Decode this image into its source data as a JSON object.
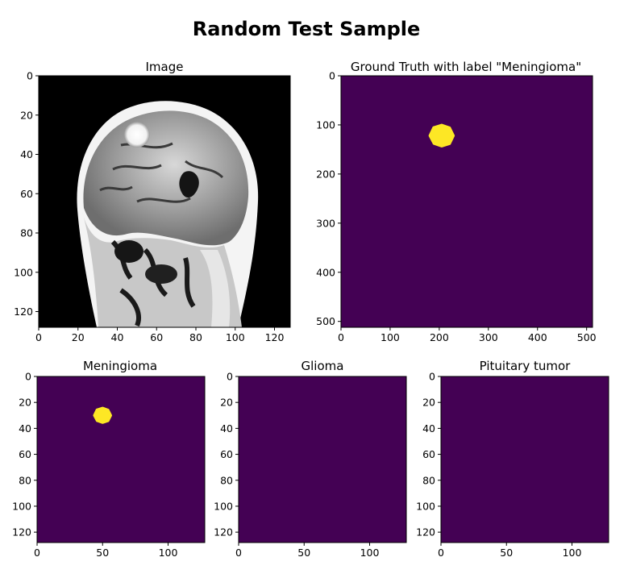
{
  "figure": {
    "title": "Random Test Sample"
  },
  "colors": {
    "mask_background": "#440154",
    "mask_foreground": "#fde725"
  },
  "chart_data": [
    {
      "type": "heatmap",
      "title": "Image",
      "content": "grayscale MRI scan",
      "xlim": [
        0,
        128
      ],
      "ylim": [
        128,
        0
      ],
      "xticks": [
        0,
        20,
        40,
        60,
        80,
        100,
        120
      ],
      "yticks": [
        0,
        20,
        40,
        60,
        80,
        100,
        120
      ],
      "tumor": {
        "cx": 50,
        "cy": 30,
        "r": 5
      }
    },
    {
      "type": "heatmap",
      "title": "Ground Truth with label \"Meningioma\"",
      "xlim": [
        0,
        512
      ],
      "ylim": [
        512,
        0
      ],
      "xticks": [
        0,
        100,
        200,
        300,
        400,
        500
      ],
      "yticks": [
        0,
        100,
        200,
        300,
        400,
        500
      ],
      "blob": {
        "cx": 205,
        "cy": 122,
        "r": 23
      }
    },
    {
      "type": "heatmap",
      "title": "Meningioma",
      "xlim": [
        0,
        128
      ],
      "ylim": [
        128,
        0
      ],
      "xticks": [
        0,
        50,
        100
      ],
      "yticks": [
        0,
        20,
        40,
        60,
        80,
        100,
        120
      ],
      "blob": {
        "cx": 50,
        "cy": 30,
        "r": 6
      }
    },
    {
      "type": "heatmap",
      "title": "Glioma",
      "xlim": [
        0,
        128
      ],
      "ylim": [
        128,
        0
      ],
      "xticks": [
        0,
        50,
        100
      ],
      "yticks": [
        0,
        20,
        40,
        60,
        80,
        100,
        120
      ]
    },
    {
      "type": "heatmap",
      "title": "Pituitary tumor",
      "xlim": [
        0,
        128
      ],
      "ylim": [
        128,
        0
      ],
      "xticks": [
        0,
        50,
        100
      ],
      "yticks": [
        0,
        20,
        40,
        60,
        80,
        100,
        120
      ]
    }
  ]
}
